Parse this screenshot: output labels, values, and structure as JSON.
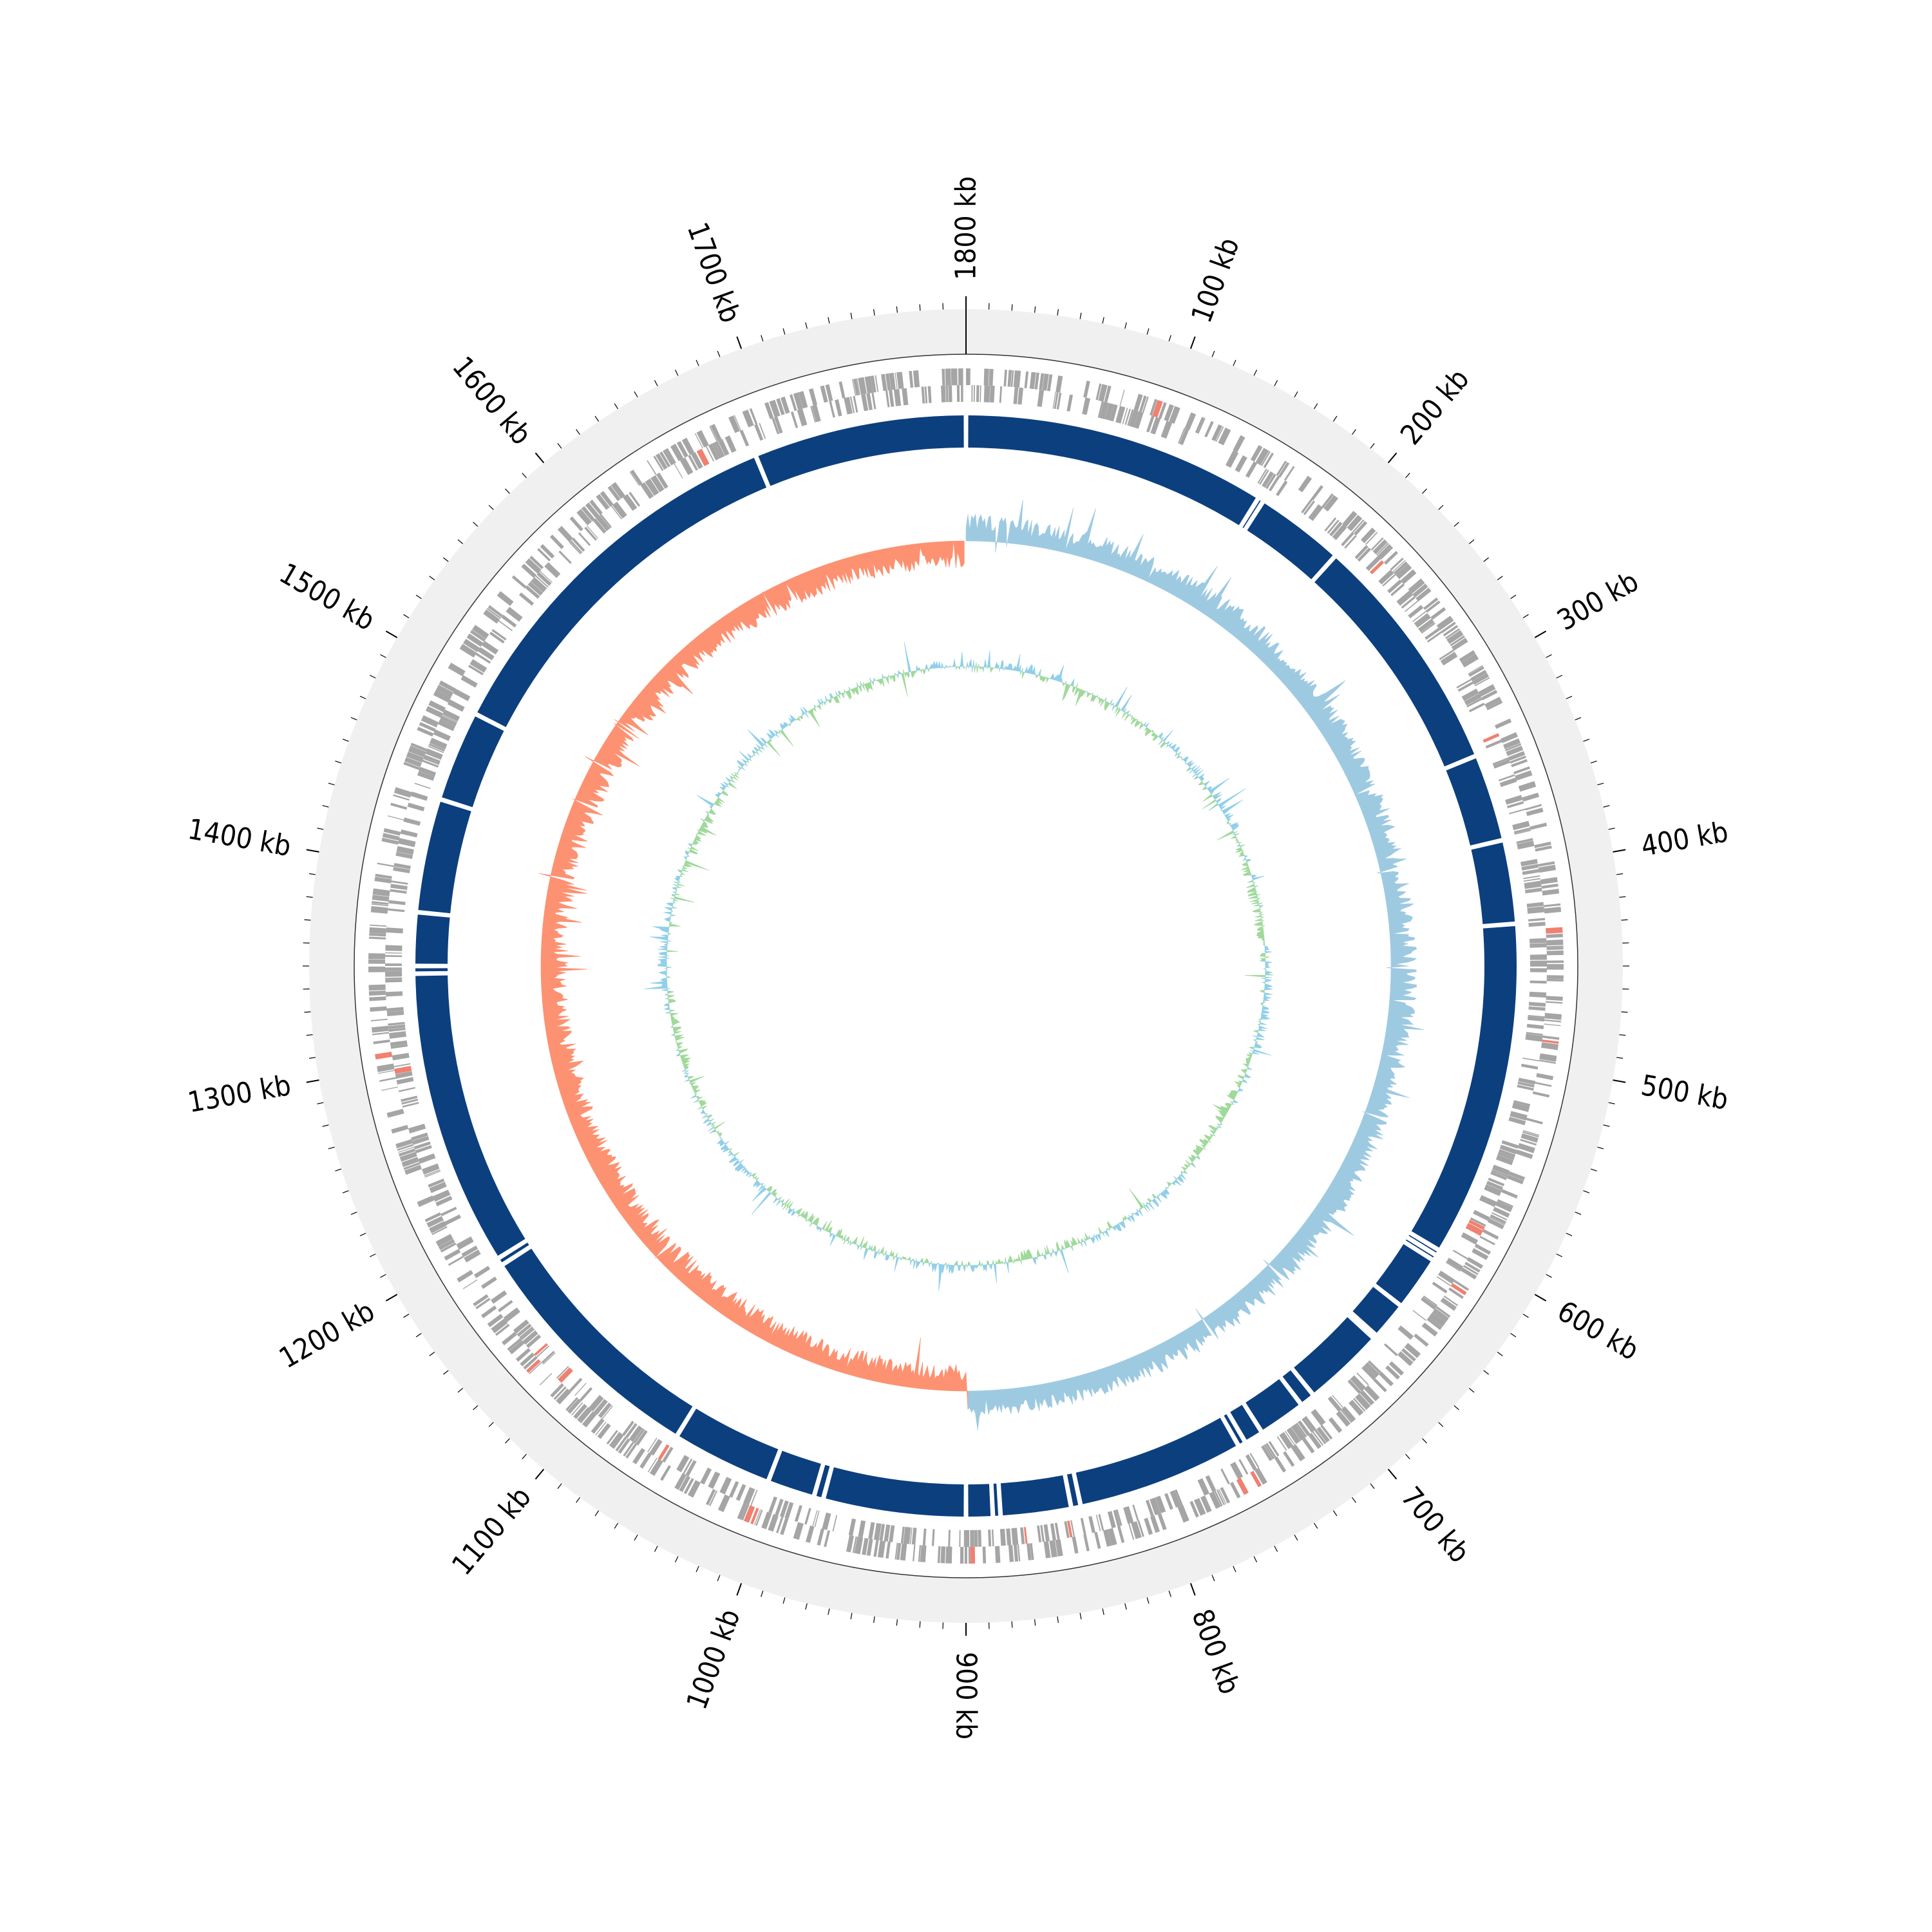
{
  "genome": {
    "length_kb": 1800,
    "label_step_kb": 100,
    "minor_tick_step_kb": 10
  },
  "tick_labels": [
    "1800 kb",
    "100 kb",
    "200 kb",
    "300 kb",
    "400 kb",
    "500 kb",
    "600 kb",
    "700 kb",
    "800 kb",
    "900 kb",
    "1000 kb",
    "1100 kb",
    "1200 kb",
    "1300 kb",
    "1400 kb",
    "1500 kb",
    "1600 kb",
    "1700 kb"
  ],
  "colors": {
    "outer_band": "#f0f0f0",
    "gene_features": "#a5a5a5",
    "rna_features": "#f08070",
    "contig_blocks": "#0c3f7e",
    "gc_skew_positive": "#9ecae1",
    "gc_skew_negative": "#fc9272",
    "gc_content_positive": "#92cfe9",
    "gc_content_negative": "#a1d99b",
    "tick": "#000000"
  },
  "tracks": [
    {
      "name": "gene-features"
    },
    {
      "name": "contig-blocks"
    },
    {
      "name": "gc-skew"
    },
    {
      "name": "gc-content"
    }
  ],
  "contig_gaps_kb": [
    160,
    163,
    210,
    338,
    384,
    428,
    605,
    608,
    611,
    640,
    660,
    662,
    705,
    713,
    738,
    748,
    752,
    840,
    845,
    882,
    886,
    900,
    975,
    980,
    1005,
    1058,
    1186,
    1190,
    1346,
    1350,
    1378,
    1438,
    1486,
    1688
  ]
}
